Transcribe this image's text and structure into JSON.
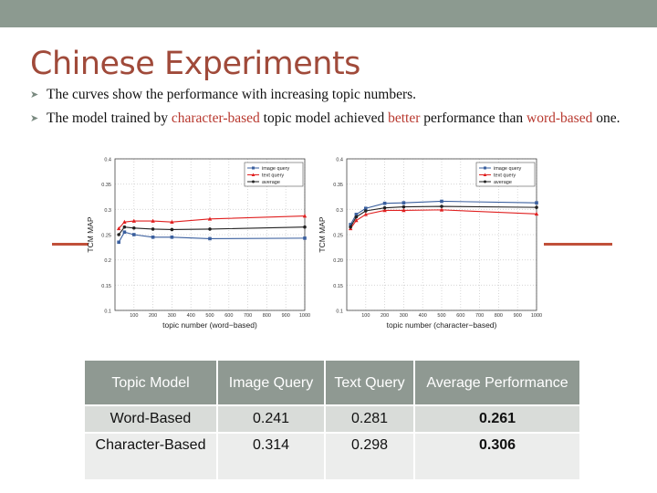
{
  "slide": {
    "title": "Chinese Experiments",
    "bullets": [
      {
        "parts": [
          {
            "text": "The curves show the performance with increasing topic numbers.",
            "hl": false
          }
        ]
      },
      {
        "parts": [
          {
            "text": "The model trained by ",
            "hl": false
          },
          {
            "text": "character-based",
            "hl": true
          },
          {
            "text": " topic model achieved ",
            "hl": false
          },
          {
            "text": "better",
            "hl": true
          },
          {
            "text": " performance than ",
            "hl": false
          },
          {
            "text": "word-based",
            "hl": true
          },
          {
            "text": " one.",
            "hl": false
          }
        ]
      }
    ]
  },
  "colors": {
    "image_query": "#3a5f9e",
    "text_query": "#e02020",
    "average": "#222222",
    "accent": "#b8382e"
  },
  "chart_data": [
    {
      "type": "line",
      "xlabel": "topic number (word−based)",
      "ylabel": "TCM MAP",
      "x": [
        20,
        50,
        100,
        200,
        300,
        500,
        1000
      ],
      "xticks": [
        100,
        200,
        300,
        400,
        500,
        600,
        700,
        800,
        900,
        1000
      ],
      "yticks": [
        0.1,
        0.15,
        0.2,
        0.25,
        0.3,
        0.35,
        0.4
      ],
      "ytick_labels": [
        "0.1",
        "0.15",
        "0.2",
        "0.25",
        "0.3",
        "0.35",
        "0.4"
      ],
      "ylim": [
        0.1,
        0.4
      ],
      "legend_position": "top-right",
      "series": [
        {
          "name": "image query",
          "marker": "square",
          "color": "#3a5f9e",
          "values": [
            0.235,
            0.255,
            0.25,
            0.245,
            0.245,
            0.242,
            0.243
          ]
        },
        {
          "name": "text query",
          "marker": "triangle",
          "color": "#e02020",
          "values": [
            0.262,
            0.275,
            0.277,
            0.277,
            0.275,
            0.281,
            0.287
          ]
        },
        {
          "name": "average",
          "marker": "circle",
          "color": "#222222",
          "values": [
            0.25,
            0.265,
            0.263,
            0.261,
            0.26,
            0.261,
            0.265
          ]
        }
      ]
    },
    {
      "type": "line",
      "xlabel": "topic number (character−based)",
      "ylabel": "TCM MAP",
      "x": [
        20,
        50,
        100,
        200,
        300,
        500,
        1000
      ],
      "xticks": [
        100,
        200,
        300,
        400,
        500,
        600,
        700,
        800,
        900,
        1000
      ],
      "yticks": [
        0.1,
        0.15,
        0.2,
        0.25,
        0.3,
        0.35,
        0.4
      ],
      "ytick_labels": [
        "0.1",
        "0.15",
        "0.20",
        "0.25",
        "0.3",
        "0.35",
        "0.4"
      ],
      "ylim": [
        0.1,
        0.4
      ],
      "legend_position": "top-right",
      "series": [
        {
          "name": "image query",
          "marker": "square",
          "color": "#3a5f9e",
          "values": [
            0.27,
            0.29,
            0.302,
            0.312,
            0.313,
            0.316,
            0.313
          ]
        },
        {
          "name": "text query",
          "marker": "triangle",
          "color": "#e02020",
          "values": [
            0.262,
            0.278,
            0.29,
            0.298,
            0.298,
            0.299,
            0.291
          ]
        },
        {
          "name": "average",
          "marker": "circle",
          "color": "#222222",
          "values": [
            0.265,
            0.285,
            0.297,
            0.303,
            0.305,
            0.306,
            0.304
          ]
        }
      ]
    }
  ],
  "table": {
    "headers": [
      "Topic Model",
      "Image Query",
      "Text Query",
      "Average Performance"
    ],
    "rows": [
      [
        "Word-Based",
        "0.241",
        "0.281",
        "0.261"
      ],
      [
        "Character-Based",
        "0.314",
        "0.298",
        "0.306"
      ]
    ]
  }
}
